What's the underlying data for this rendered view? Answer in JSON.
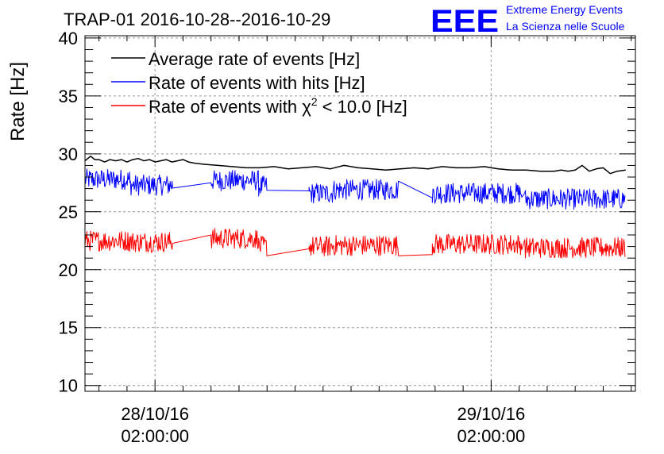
{
  "logo": {
    "mark": "EEE",
    "line1": "Extreme Energy Events",
    "line2": "La Scienza nelle Scuole",
    "color": "#0000ff"
  },
  "chart_data": {
    "type": "line",
    "title": "TRAP-01 2016-10-28--2016-10-29",
    "ylabel": "Rate [Hz]",
    "xlabel": "",
    "ylim": [
      9.5,
      40.2
    ],
    "yticks": [
      10,
      15,
      20,
      25,
      30,
      35,
      40
    ],
    "ytick_labels": [
      "10",
      "15",
      "20",
      "25",
      "30",
      "35",
      "40"
    ],
    "xlim_hours": [
      -3.0,
      36.3
    ],
    "xticks": [
      {
        "hour": 2,
        "date": "28/10/16",
        "time": "02:00:00"
      },
      {
        "hour": 26,
        "date": "29/10/16",
        "time": "02:00:00"
      }
    ],
    "grid": true,
    "legend_position": "top-left",
    "legend": [
      {
        "label_pre": "Average rate of events [Hz]",
        "sup": "",
        "label_post": "",
        "color": "#000000"
      },
      {
        "label_pre": "Rate of events with hits [Hz]",
        "sup": "",
        "label_post": "",
        "color": "#0000ff"
      },
      {
        "label_pre": "Rate of events with χ",
        "sup": "2",
        "label_post": " < 10.0 [Hz]",
        "color": "#ff0000"
      }
    ],
    "series": [
      {
        "name": "Average rate of events [Hz]",
        "color": "#000000",
        "x_hours": [
          -3.0,
          -2.6,
          -2.3,
          -2.0,
          -1.6,
          -1.2,
          -0.8,
          -0.4,
          0.0,
          0.4,
          0.8,
          1.2,
          1.6,
          2.0,
          2.4,
          2.8,
          3.2,
          3.6,
          4.0,
          4.4,
          4.8,
          5.5,
          6.5,
          7.5,
          8.5,
          9.5,
          10.5,
          11.5,
          12.5,
          13.5,
          14.5,
          15.5,
          16.5,
          17.5,
          18.5,
          19.5,
          20.5,
          21.5,
          22.5,
          23.5,
          24.5,
          25.5,
          26.5,
          27.5,
          28.5,
          29.5,
          30.5,
          31.0,
          31.5,
          32.0,
          32.5,
          33.0,
          33.5,
          34.0,
          34.5,
          35.0,
          35.6
        ],
        "values": [
          29.4,
          29.8,
          29.5,
          29.5,
          29.3,
          29.5,
          29.4,
          29.5,
          29.3,
          29.5,
          29.6,
          29.4,
          29.5,
          29.3,
          29.4,
          29.5,
          29.3,
          29.4,
          29.5,
          29.3,
          29.2,
          29.1,
          29.0,
          28.9,
          28.8,
          28.8,
          28.9,
          28.7,
          28.8,
          28.9,
          28.7,
          29.0,
          28.8,
          28.7,
          28.6,
          28.7,
          28.8,
          28.7,
          28.9,
          28.8,
          28.8,
          28.9,
          28.7,
          28.6,
          28.6,
          28.5,
          28.5,
          28.6,
          28.5,
          28.6,
          29.0,
          28.5,
          28.7,
          28.8,
          28.3,
          28.5,
          28.6
        ]
      },
      {
        "name": "Rate of events with hits [Hz]",
        "color": "#0000ff",
        "noise_amplitude": 0.9,
        "segments": [
          {
            "start": -3.0,
            "end": 0.2,
            "mean": 27.8
          },
          {
            "start": 0.2,
            "end": 3.3,
            "mean": 27.3
          },
          {
            "start": 3.3,
            "end": 6.0,
            "mean": 27.5
          },
          {
            "start": 6.0,
            "end": 9.4,
            "mean": 27.7
          },
          {
            "start": 9.4,
            "end": 10.0,
            "mean": 27.2
          },
          {
            "start": 10.0,
            "end": 13.0,
            "mean": 26.8
          },
          {
            "start": 13.0,
            "end": 14.7,
            "mean": 26.6
          },
          {
            "start": 14.7,
            "end": 19.4,
            "mean": 26.9
          },
          {
            "start": 19.4,
            "end": 21.8,
            "mean": 26.2
          },
          {
            "start": 21.8,
            "end": 28.2,
            "mean": 26.6
          },
          {
            "start": 28.4,
            "end": 35.6,
            "mean": 26.1
          }
        ],
        "gaps": [
          [
            3.3,
            6.0
          ],
          [
            10.0,
            13.0
          ],
          [
            19.4,
            21.8
          ]
        ]
      },
      {
        "name": "Rate of events with χ2 < 10.0 [Hz]",
        "color": "#ff0000",
        "noise_amplitude": 0.9,
        "segments": [
          {
            "start": -3.0,
            "end": 0.2,
            "mean": 22.5
          },
          {
            "start": 0.2,
            "end": 3.3,
            "mean": 22.4
          },
          {
            "start": 3.3,
            "end": 6.0,
            "mean": 23.0
          },
          {
            "start": 6.0,
            "end": 9.4,
            "mean": 22.7
          },
          {
            "start": 9.4,
            "end": 10.0,
            "mean": 22.0
          },
          {
            "start": 10.0,
            "end": 13.0,
            "mean": 21.8
          },
          {
            "start": 13.0,
            "end": 14.7,
            "mean": 22.0
          },
          {
            "start": 14.7,
            "end": 19.4,
            "mean": 22.1
          },
          {
            "start": 19.4,
            "end": 21.8,
            "mean": 21.3
          },
          {
            "start": 21.8,
            "end": 28.2,
            "mean": 22.2
          },
          {
            "start": 28.4,
            "end": 35.6,
            "mean": 21.9
          }
        ],
        "gaps": [
          [
            3.3,
            6.0
          ],
          [
            10.0,
            13.0
          ],
          [
            19.4,
            21.8
          ]
        ]
      }
    ]
  }
}
